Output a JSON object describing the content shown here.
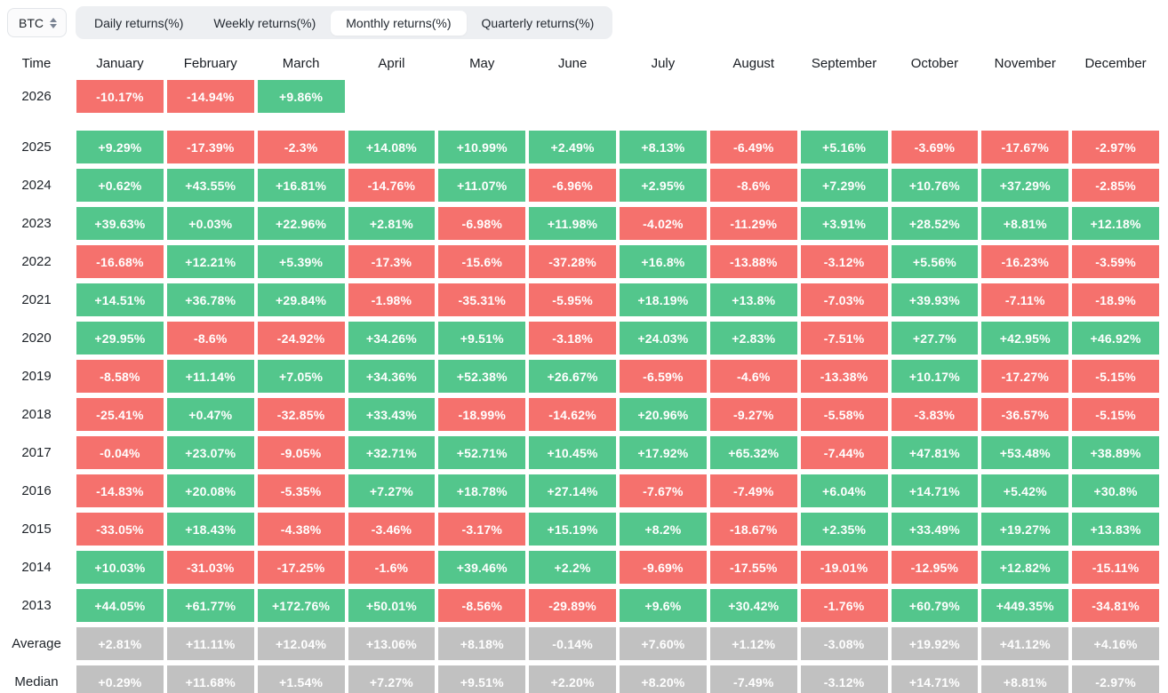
{
  "selector": {
    "label": "BTC"
  },
  "tabs": [
    {
      "label": "Daily returns(%)",
      "active": false
    },
    {
      "label": "Weekly returns(%)",
      "active": false
    },
    {
      "label": "Monthly returns(%)",
      "active": true
    },
    {
      "label": "Quarterly returns(%)",
      "active": false
    }
  ],
  "colors": {
    "positive": "#53C68C",
    "negative": "#F5716D",
    "summary": "#C1C1C1"
  },
  "table": {
    "time_header": "Time",
    "columns": [
      "January",
      "February",
      "March",
      "April",
      "May",
      "June",
      "July",
      "August",
      "September",
      "October",
      "November",
      "December"
    ],
    "rows": [
      {
        "label": "2026",
        "type": "year",
        "gap_after": true,
        "values": [
          "-10.17%",
          "-14.94%",
          "+9.86%",
          null,
          null,
          null,
          null,
          null,
          null,
          null,
          null,
          null
        ]
      },
      {
        "label": "2025",
        "type": "year",
        "values": [
          "+9.29%",
          "-17.39%",
          "-2.3%",
          "+14.08%",
          "+10.99%",
          "+2.49%",
          "+8.13%",
          "-6.49%",
          "+5.16%",
          "-3.69%",
          "-17.67%",
          "-2.97%"
        ]
      },
      {
        "label": "2024",
        "type": "year",
        "values": [
          "+0.62%",
          "+43.55%",
          "+16.81%",
          "-14.76%",
          "+11.07%",
          "-6.96%",
          "+2.95%",
          "-8.6%",
          "+7.29%",
          "+10.76%",
          "+37.29%",
          "-2.85%"
        ]
      },
      {
        "label": "2023",
        "type": "year",
        "values": [
          "+39.63%",
          "+0.03%",
          "+22.96%",
          "+2.81%",
          "-6.98%",
          "+11.98%",
          "-4.02%",
          "-11.29%",
          "+3.91%",
          "+28.52%",
          "+8.81%",
          "+12.18%"
        ]
      },
      {
        "label": "2022",
        "type": "year",
        "values": [
          "-16.68%",
          "+12.21%",
          "+5.39%",
          "-17.3%",
          "-15.6%",
          "-37.28%",
          "+16.8%",
          "-13.88%",
          "-3.12%",
          "+5.56%",
          "-16.23%",
          "-3.59%"
        ]
      },
      {
        "label": "2021",
        "type": "year",
        "values": [
          "+14.51%",
          "+36.78%",
          "+29.84%",
          "-1.98%",
          "-35.31%",
          "-5.95%",
          "+18.19%",
          "+13.8%",
          "-7.03%",
          "+39.93%",
          "-7.11%",
          "-18.9%"
        ]
      },
      {
        "label": "2020",
        "type": "year",
        "values": [
          "+29.95%",
          "-8.6%",
          "-24.92%",
          "+34.26%",
          "+9.51%",
          "-3.18%",
          "+24.03%",
          "+2.83%",
          "-7.51%",
          "+27.7%",
          "+42.95%",
          "+46.92%"
        ]
      },
      {
        "label": "2019",
        "type": "year",
        "values": [
          "-8.58%",
          "+11.14%",
          "+7.05%",
          "+34.36%",
          "+52.38%",
          "+26.67%",
          "-6.59%",
          "-4.6%",
          "-13.38%",
          "+10.17%",
          "-17.27%",
          "-5.15%"
        ]
      },
      {
        "label": "2018",
        "type": "year",
        "values": [
          "-25.41%",
          "+0.47%",
          "-32.85%",
          "+33.43%",
          "-18.99%",
          "-14.62%",
          "+20.96%",
          "-9.27%",
          "-5.58%",
          "-3.83%",
          "-36.57%",
          "-5.15%"
        ]
      },
      {
        "label": "2017",
        "type": "year",
        "values": [
          "-0.04%",
          "+23.07%",
          "-9.05%",
          "+32.71%",
          "+52.71%",
          "+10.45%",
          "+17.92%",
          "+65.32%",
          "-7.44%",
          "+47.81%",
          "+53.48%",
          "+38.89%"
        ]
      },
      {
        "label": "2016",
        "type": "year",
        "values": [
          "-14.83%",
          "+20.08%",
          "-5.35%",
          "+7.27%",
          "+18.78%",
          "+27.14%",
          "-7.67%",
          "-7.49%",
          "+6.04%",
          "+14.71%",
          "+5.42%",
          "+30.8%"
        ]
      },
      {
        "label": "2015",
        "type": "year",
        "values": [
          "-33.05%",
          "+18.43%",
          "-4.38%",
          "-3.46%",
          "-3.17%",
          "+15.19%",
          "+8.2%",
          "-18.67%",
          "+2.35%",
          "+33.49%",
          "+19.27%",
          "+13.83%"
        ]
      },
      {
        "label": "2014",
        "type": "year",
        "values": [
          "+10.03%",
          "-31.03%",
          "-17.25%",
          "-1.6%",
          "+39.46%",
          "+2.2%",
          "-9.69%",
          "-17.55%",
          "-19.01%",
          "-12.95%",
          "+12.82%",
          "-15.11%"
        ]
      },
      {
        "label": "2013",
        "type": "year",
        "values": [
          "+44.05%",
          "+61.77%",
          "+172.76%",
          "+50.01%",
          "-8.56%",
          "-29.89%",
          "+9.6%",
          "+30.42%",
          "-1.76%",
          "+60.79%",
          "+449.35%",
          "-34.81%"
        ]
      },
      {
        "label": "Average",
        "type": "summary",
        "values": [
          "+2.81%",
          "+11.11%",
          "+12.04%",
          "+13.06%",
          "+8.18%",
          "-0.14%",
          "+7.60%",
          "+1.12%",
          "-3.08%",
          "+19.92%",
          "+41.12%",
          "+4.16%"
        ]
      },
      {
        "label": "Median",
        "type": "summary",
        "values": [
          "+0.29%",
          "+11.68%",
          "+1.54%",
          "+7.27%",
          "+9.51%",
          "+2.20%",
          "+8.20%",
          "-7.49%",
          "-3.12%",
          "+14.71%",
          "+8.81%",
          "-2.97%"
        ]
      }
    ]
  }
}
